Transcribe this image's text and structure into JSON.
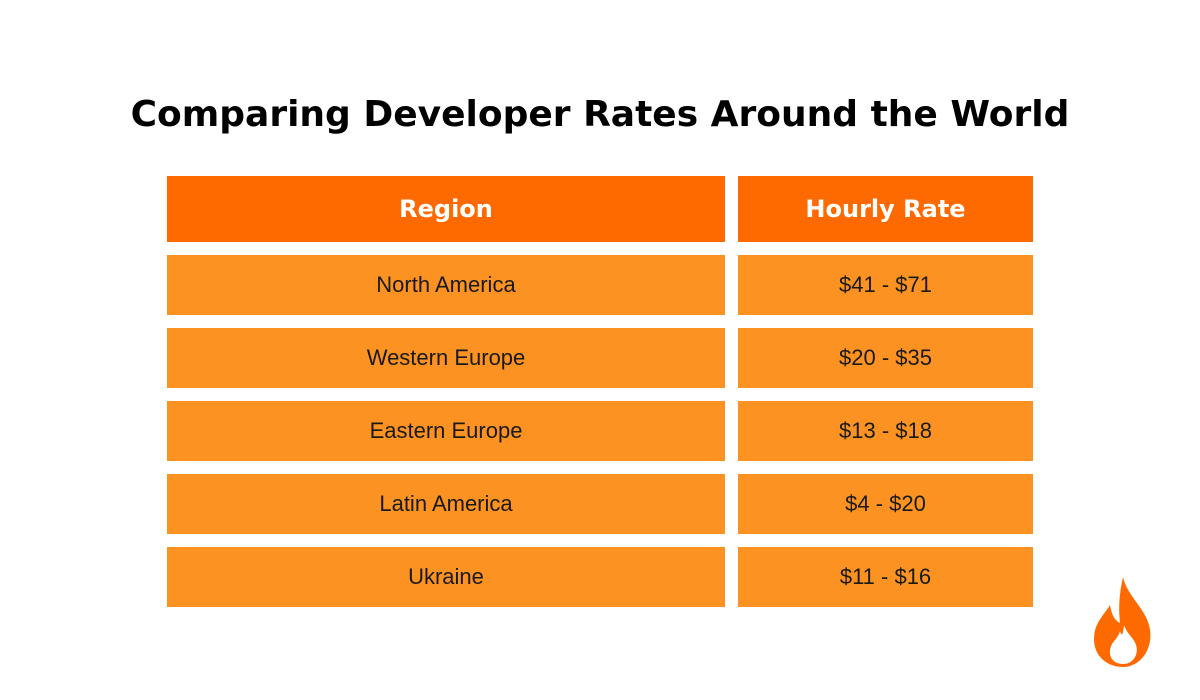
{
  "title": "Comparing Developer Rates Around the World",
  "table": {
    "header": [
      "Region",
      "Hourly Rate"
    ],
    "rows": [
      [
        "North America",
        "$41 - $71"
      ],
      [
        "Western Europe",
        "$20 - $35"
      ],
      [
        "Eastern Europe",
        "$13 - $18"
      ],
      [
        "Latin America",
        "$4 - $20"
      ],
      [
        "Ukraine",
        "$11 - $16"
      ]
    ]
  }
}
